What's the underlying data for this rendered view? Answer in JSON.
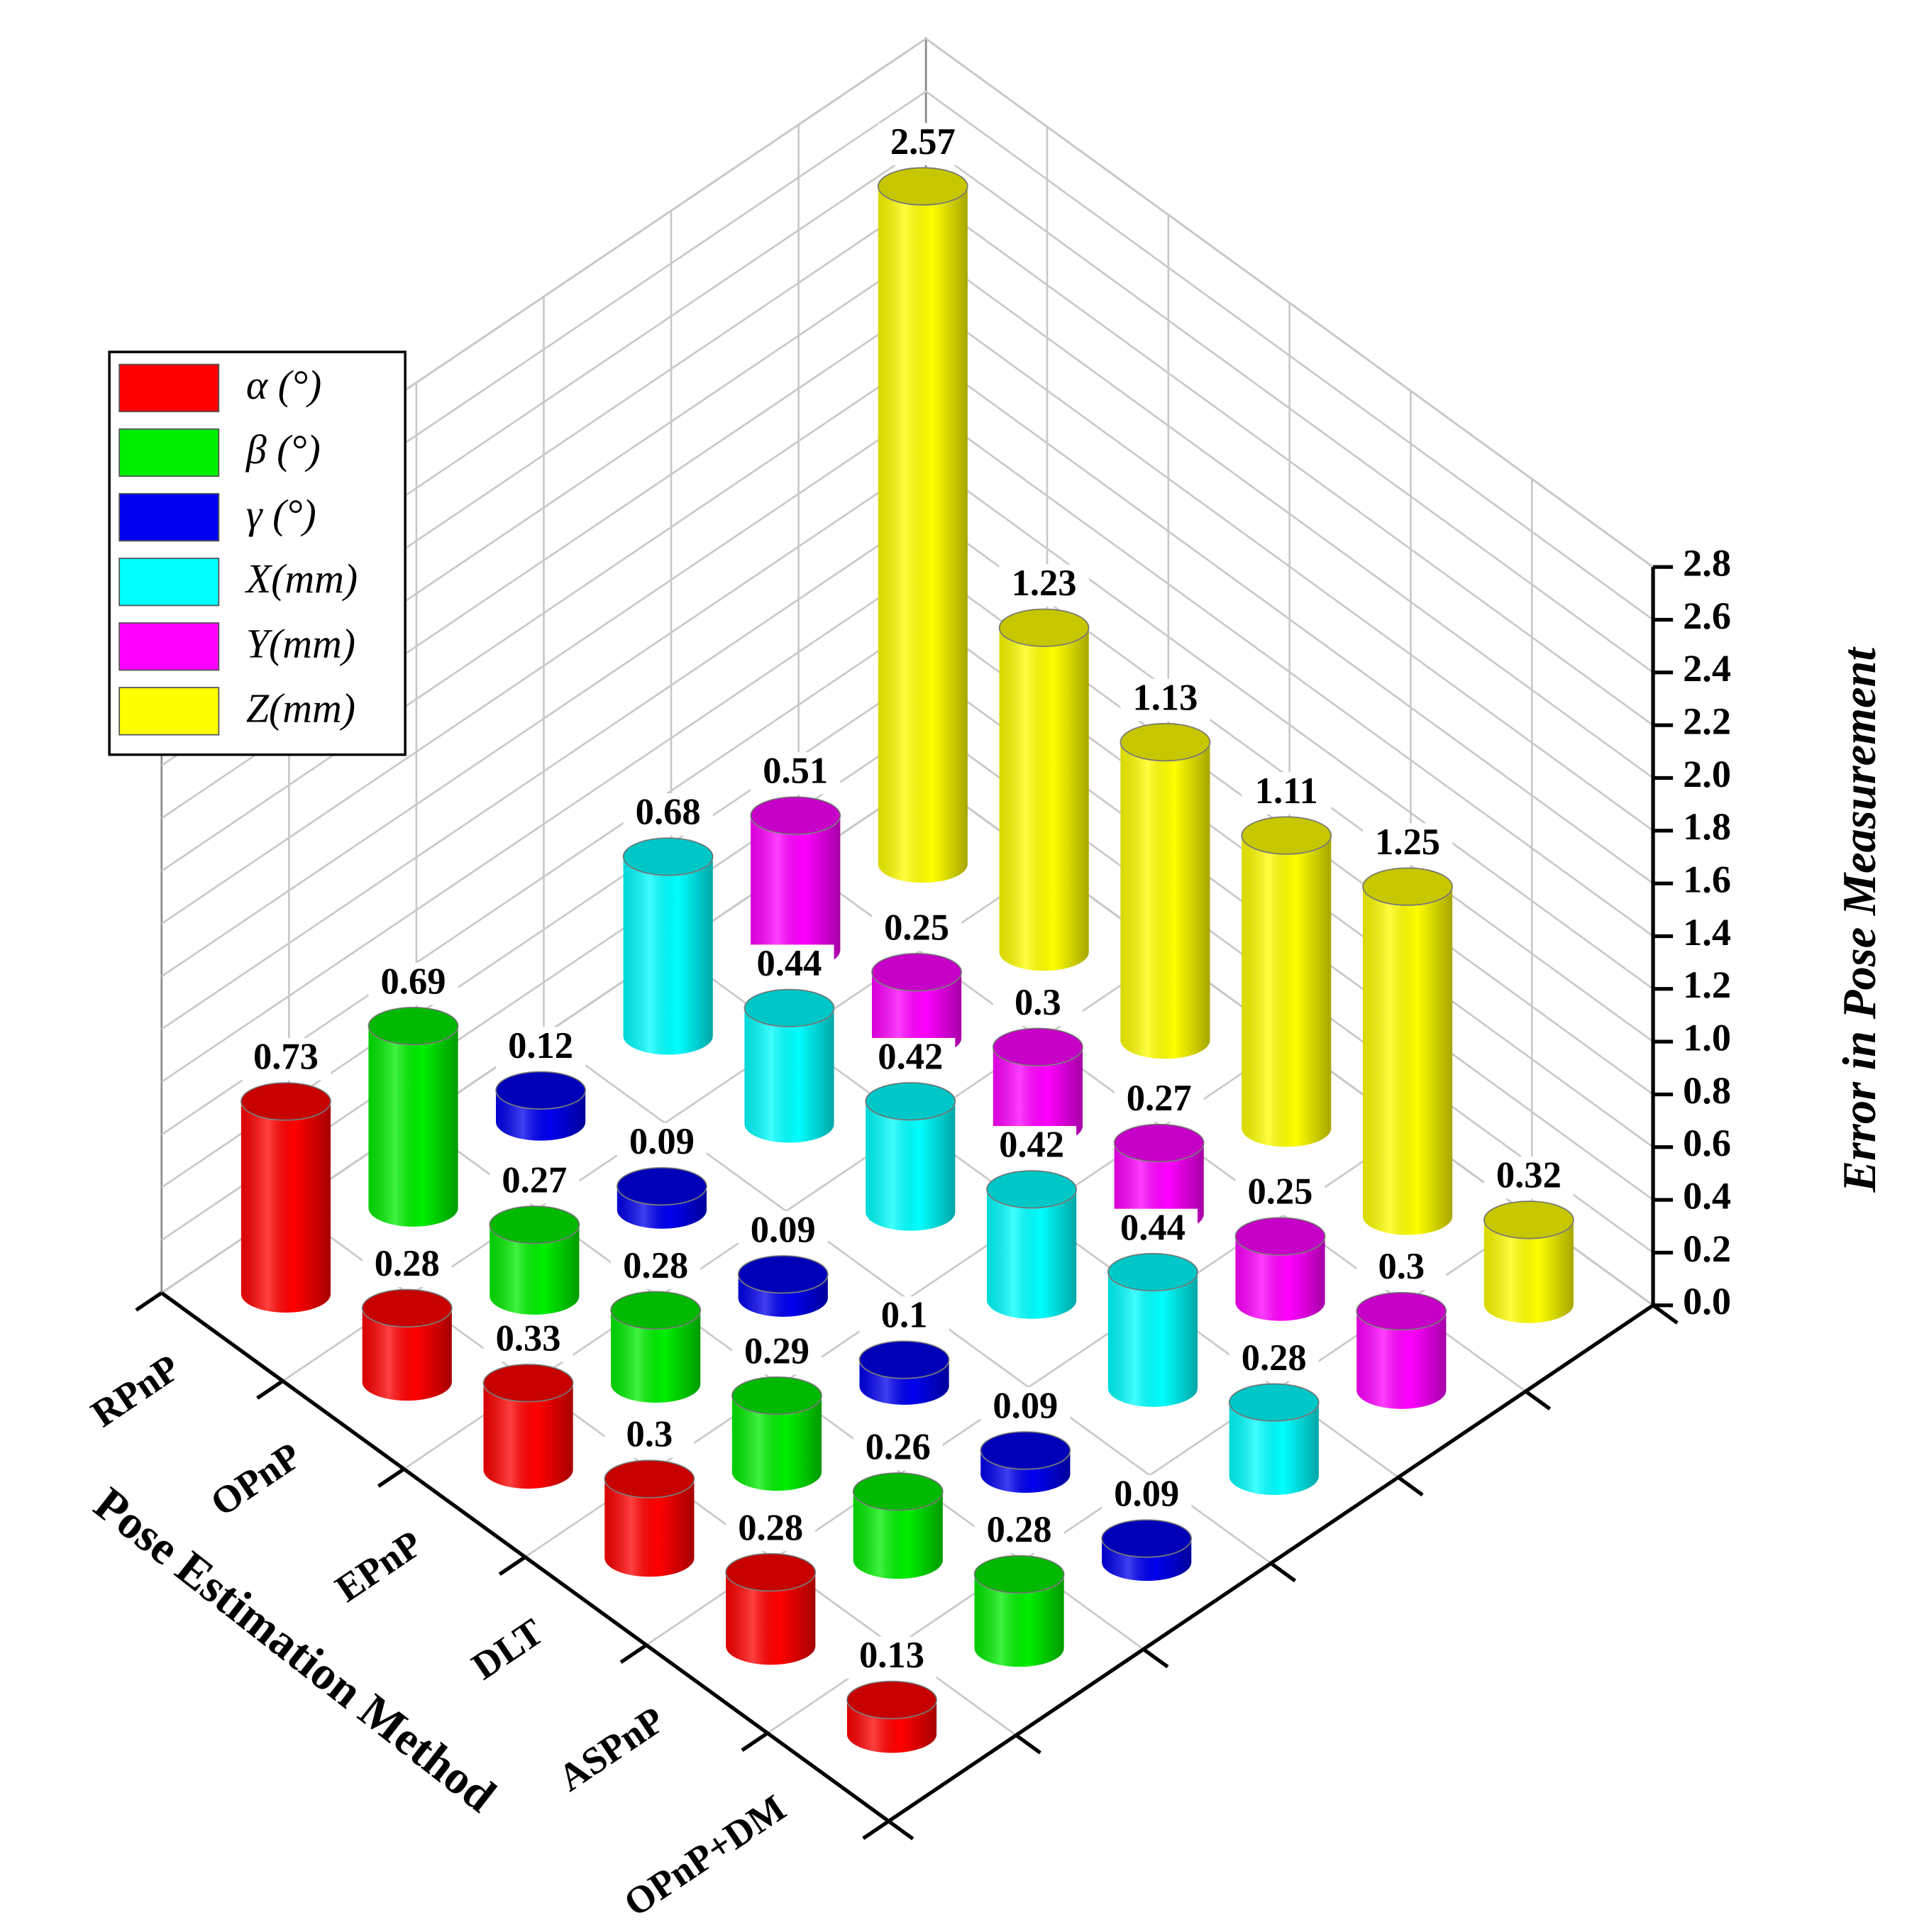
{
  "chart_data": {
    "type": "bar",
    "categories": [
      "RPnP",
      "OPnP",
      "EPnP",
      "DLT",
      "ASPnP",
      "OPnP+DM"
    ],
    "series": [
      {
        "name": "α (°)",
        "color": "#ff0000",
        "values": [
          0.73,
          0.28,
          0.33,
          0.3,
          0.28,
          0.13
        ]
      },
      {
        "name": "β (°)",
        "color": "#00ee00",
        "values": [
          0.69,
          0.27,
          0.28,
          0.29,
          0.26,
          0.28
        ]
      },
      {
        "name": "γ (°)",
        "color": "#0000ee",
        "values": [
          0.12,
          0.09,
          0.09,
          0.1,
          0.09,
          0.09
        ]
      },
      {
        "name": "X(mm)",
        "color": "#00ffff",
        "values": [
          0.68,
          0.44,
          0.42,
          0.42,
          0.44,
          0.28
        ]
      },
      {
        "name": "Y(mm)",
        "color": "#ff00ff",
        "values": [
          0.51,
          0.25,
          0.3,
          0.27,
          0.25,
          0.3
        ]
      },
      {
        "name": "Z(mm)",
        "color": "#ffff00",
        "values": [
          2.57,
          1.23,
          1.13,
          1.11,
          1.25,
          0.32
        ]
      }
    ],
    "x_label": "Pose Estimation Method",
    "y_label": "Error in Pose Measurement",
    "ylim": [
      0,
      2.8
    ],
    "yticks": [
      {
        "value": 0,
        "label": "0.0"
      },
      0.2,
      0.4,
      0.6,
      0.8,
      {
        "value": 1,
        "label": "1.0"
      },
      1.2,
      1.4,
      1.6,
      1.8,
      {
        "value": 2,
        "label": "2.0"
      },
      2.2,
      2.4,
      2.6,
      2.8
    ],
    "grid": true,
    "legend": "upper left"
  }
}
